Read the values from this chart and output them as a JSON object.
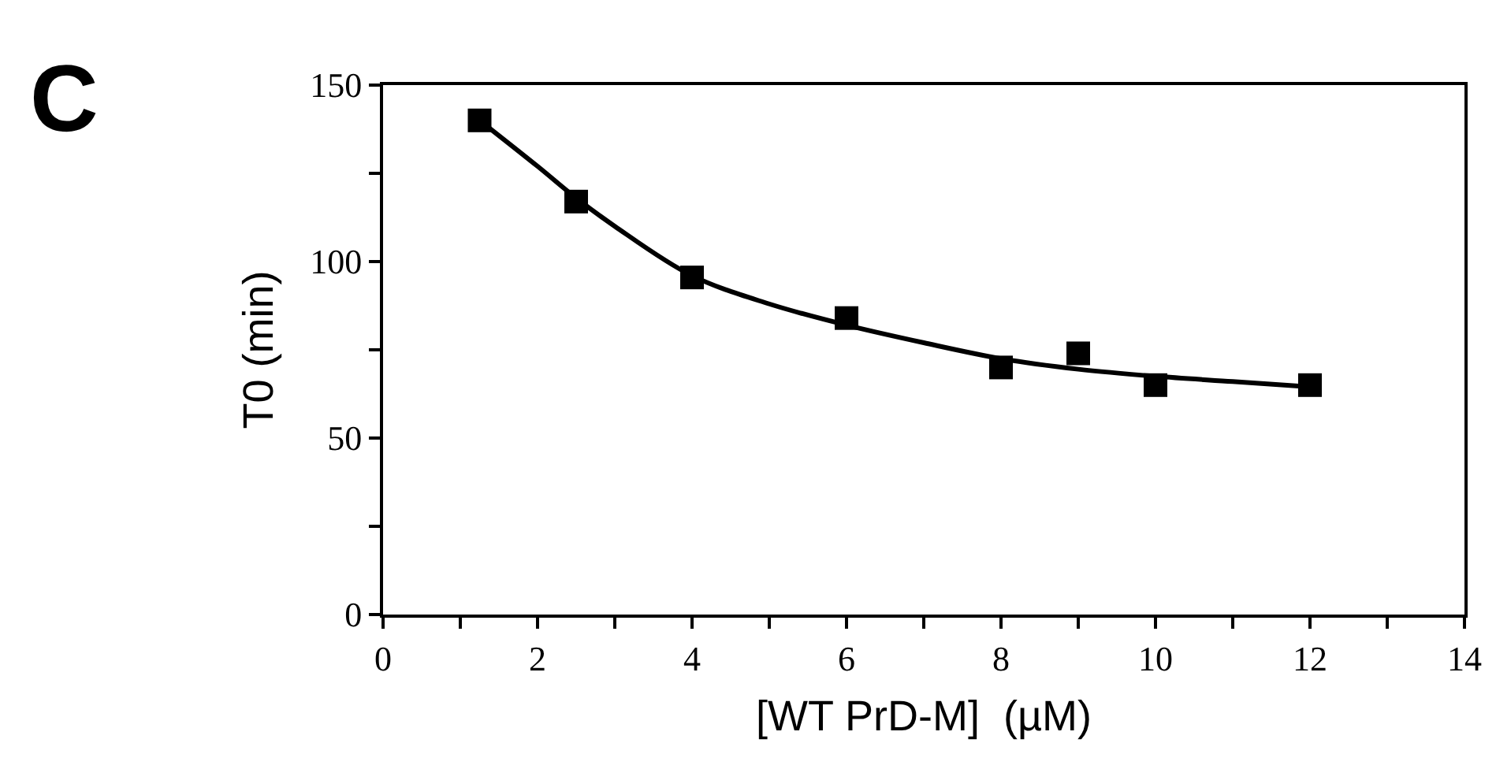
{
  "chart_data": {
    "type": "scatter",
    "xlabel": "[WT PrD-M]  (µM)",
    "ylabel": "T0 (min)",
    "annotations": [
      "C"
    ],
    "series": [
      {
        "color": "#000000",
        "x": [
          1.25,
          2.5,
          4,
          6,
          8,
          9,
          10,
          12
        ],
        "values": [
          140,
          117,
          95.5,
          84,
          70,
          74,
          65,
          65
        ]
      },
      {
        "type": "line",
        "color": "#000000",
        "marker": "none",
        "line_style": "solid",
        "x": [
          1.25,
          2,
          2.5,
          3,
          4,
          5,
          6,
          7,
          8,
          9,
          10,
          11,
          12
        ],
        "values": [
          140,
          127,
          118,
          110,
          96,
          88,
          82,
          77,
          72.5,
          69.5,
          67.5,
          66,
          64.5
        ]
      }
    ],
    "xlim": [
      0,
      14
    ],
    "ylim": [
      0,
      150
    ],
    "xticks": [
      0,
      {
        "value": 1,
        "label": null
      },
      2,
      {
        "value": 3,
        "label": null
      },
      4,
      {
        "value": 5,
        "label": null
      },
      6,
      {
        "value": 7,
        "label": null
      },
      8,
      {
        "value": 9,
        "label": null
      },
      10,
      {
        "value": 11,
        "label": null
      },
      12,
      {
        "value": 13,
        "label": null
      },
      14
    ],
    "yticks": [
      0,
      {
        "value": 25,
        "label": null
      },
      50,
      {
        "value": 75,
        "label": null
      },
      100,
      {
        "value": 125,
        "label": null
      },
      150
    ],
    "marker": "square"
  }
}
